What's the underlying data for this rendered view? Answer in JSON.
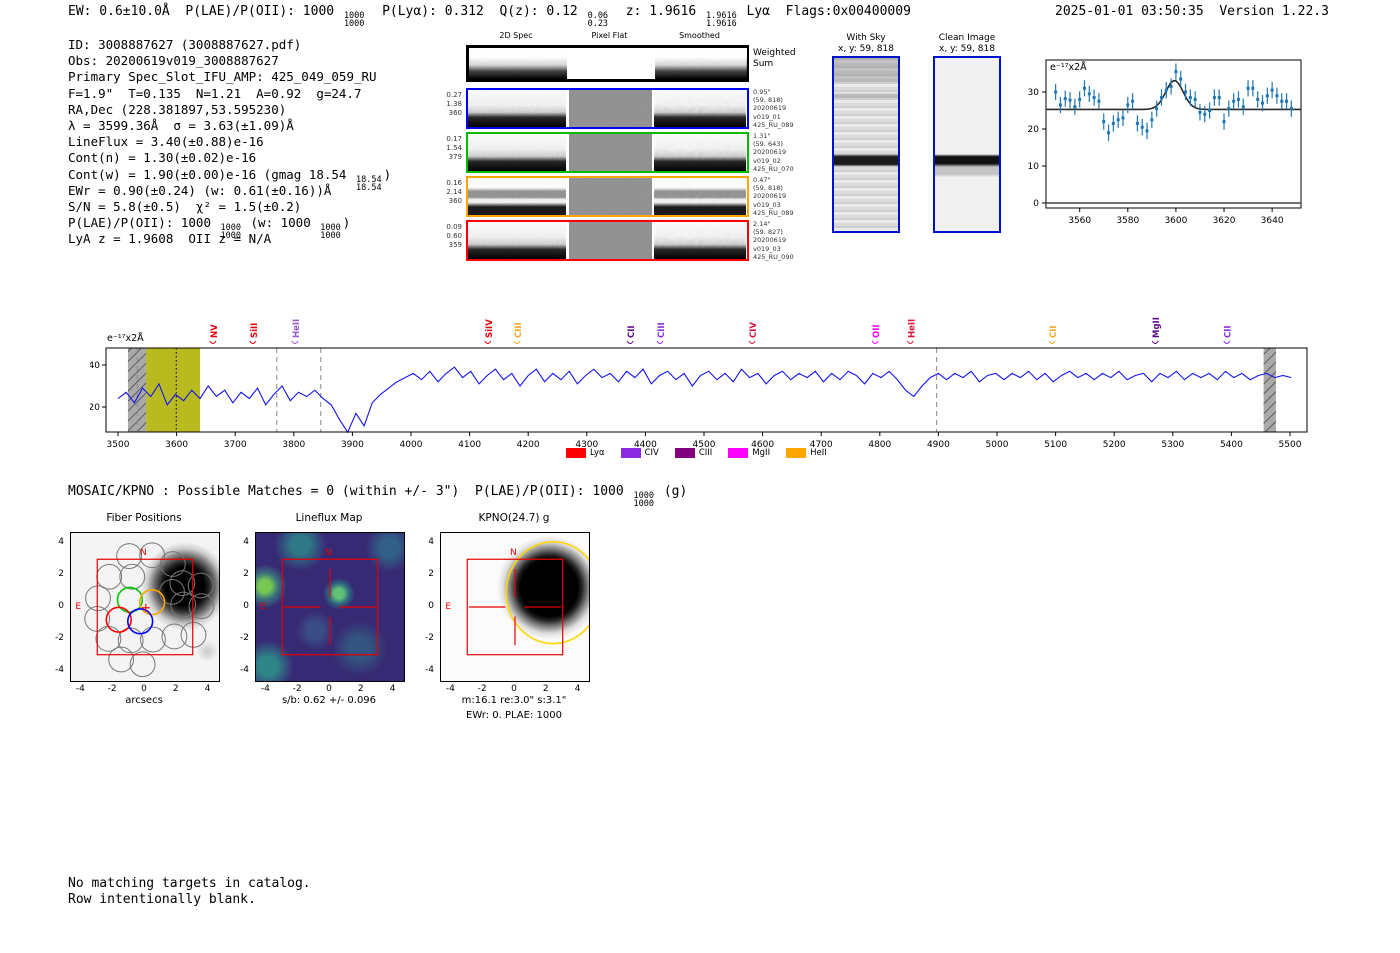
{
  "header": {
    "line": "EW: 0.6±10.0Å  P(LAE)/P(OII): 1000 [1000/1000]  P(Lyα): 0.312  Q(z): 0.12 [0.06/0.23]  z: 1.9616 [1.9616/1.9616] Lyα  Flags:0x00400009",
    "meta": "2025-01-01 03:50:35  Version 1.22.3"
  },
  "info": {
    "lines": [
      "ID: 3008887627 (3008887627.pdf)",
      "Obs: 20200619v019_3008887627",
      "Primary Spec_Slot_IFU_AMP: 425_049_059_RU",
      "F=1.9\"  T=0.135  N=1.21  A=0.92  g=24.7",
      "RA,Dec (228.381897,53.595230)",
      "λ = 3599.36Å  σ = 3.63(±1.09)Å",
      "LineFlux = 3.40(±0.88)e-16",
      "Cont(n) = 1.30(±0.02)e-16",
      "Cont(w) = 1.90(±0.00)e-16 (gmag 18.54 [18.54/18.54])",
      "EWr = 0.90(±0.24) (w: 0.61(±0.16))Å",
      "S/N = 5.8(±0.5)  χ² = 1.5(±0.2)",
      "P(LAE)/P(OII): 1000 [1000/1000] (w: 1000 [1000/1000])",
      "LyA z = 1.9608  OII z = N/A"
    ]
  },
  "spec2d": {
    "col_titles": [
      "2D Spec",
      "Pixel Flat",
      "Smoothed"
    ],
    "weighted_label": "Weighted Sum",
    "rows": [
      {
        "color": "#0000ff",
        "left": [
          "0.27",
          "1.38",
          "360"
        ],
        "right": [
          "0.95\"",
          "(59, 818)",
          "20200619",
          "v019_01",
          "425_RU_089"
        ]
      },
      {
        "color": "#00bb00",
        "left": [
          "0.17",
          "1.54",
          "379"
        ],
        "right": [
          "1.31\"",
          "(59, 643)",
          "20200619",
          "v019_02",
          "425_RU_070"
        ]
      },
      {
        "color": "#ffa500",
        "left": [
          "0.16",
          "2.14",
          "360"
        ],
        "right": [
          "0.47\"",
          "(59, 818)",
          "20200619",
          "v019_03",
          "425_RU_089"
        ]
      },
      {
        "color": "#ff0000",
        "left": [
          "0.09",
          "0.60",
          "359"
        ],
        "right": [
          "2.14\"",
          "(59, 827)",
          "20200619",
          "v019_03",
          "425_RU_090"
        ]
      }
    ]
  },
  "cutouts": {
    "with_sky": {
      "title": "With Sky",
      "coords": "x, y: 59, 818"
    },
    "clean": {
      "title": "Clean Image",
      "coords": "x, y: 59, 818"
    }
  },
  "mosaic_line": "MOSAIC/KPNO : Possible Matches = 0 (within +/- 3\")  P(LAE)/P(OII): 1000 [1000/1000] (g)",
  "notes": [
    "No matching targets in catalog.",
    "Row intentionally blank."
  ],
  "chart_data": [
    {
      "id": "line_fit",
      "type": "scatter",
      "units_label": "e⁻¹⁷x2Å",
      "x_start": 3550,
      "x_step": 2,
      "values": [
        30.0,
        26.5,
        28.2,
        27.8,
        26.0,
        28.0,
        31.0,
        29.5,
        28.5,
        27.5,
        22.0,
        19.0,
        21.5,
        22.5,
        23.0,
        26.5,
        27.5,
        21.5,
        20.5,
        19.5,
        22.5,
        25.5,
        28.5,
        30.5,
        31.5,
        35.5,
        33.5,
        30.0,
        28.5,
        28.0,
        24.5,
        24.0,
        25.0,
        28.5,
        28.5,
        22.0,
        25.5,
        27.5,
        28.0,
        26.0,
        31.0,
        31.0,
        28.0,
        27.0,
        29.0,
        30.5,
        29.0,
        27.5,
        27.5,
        25.5
      ],
      "yerr": 2.2,
      "fit": {
        "baseline": 25.3,
        "amplitude": 7.8,
        "center": 3599.4,
        "sigma": 3.63
      },
      "xticks": [
        3560,
        3580,
        3600,
        3620,
        3640
      ],
      "yticks": [
        0,
        10,
        20,
        30
      ],
      "xlim": [
        3546,
        3652
      ],
      "ylim": [
        -1.4,
        38.5
      ]
    },
    {
      "id": "full_spectrum",
      "type": "line",
      "units_label": "e⁻¹⁷x2Å",
      "x_start": 3500,
      "x_step": 14,
      "values": [
        24,
        27,
        22,
        29,
        25,
        31,
        21,
        26,
        23,
        28,
        24,
        30,
        25,
        28,
        22,
        27,
        24,
        29,
        21,
        26,
        30,
        23,
        27,
        25,
        28,
        24,
        21,
        14,
        8,
        17,
        11,
        22,
        26,
        29,
        32,
        34,
        36,
        33,
        37,
        32,
        36,
        39,
        34,
        37,
        31,
        35,
        38,
        33,
        36,
        30,
        35,
        38,
        32,
        36,
        33,
        37,
        31,
        35,
        38,
        34,
        36,
        32,
        37,
        34,
        38,
        31,
        35,
        37,
        33,
        36,
        30,
        35,
        37,
        33,
        36,
        32,
        38,
        34,
        36,
        31,
        35,
        37,
        33,
        36,
        34,
        37,
        32,
        36,
        33,
        37,
        35,
        31,
        36,
        34,
        37,
        33,
        28,
        25,
        30,
        34,
        36,
        33,
        36,
        34,
        37,
        32,
        35,
        36,
        33,
        36,
        34,
        37,
        33,
        36,
        32,
        35,
        37,
        34,
        36,
        33,
        36,
        34,
        37,
        33,
        35,
        36,
        32,
        36,
        34,
        37,
        33,
        36,
        34,
        36,
        33,
        37,
        34,
        36,
        33,
        35,
        36,
        34,
        35,
        34
      ],
      "xticks": [
        3500,
        3600,
        3700,
        3800,
        3900,
        4000,
        4100,
        4200,
        4300,
        4400,
        4500,
        4600,
        4700,
        4800,
        4900,
        5000,
        5100,
        5200,
        5300,
        5400,
        5500
      ],
      "yticks": [
        20,
        40
      ],
      "xlim": [
        3479,
        5529
      ],
      "ylim": [
        7,
        49
      ],
      "emission_band": [
        3548,
        3640
      ],
      "hatch_bands": [
        [
          3517,
          3548
        ],
        [
          5455,
          5476
        ]
      ],
      "dashed_lines": [
        3533,
        3771,
        3846,
        4897
      ],
      "dotted_line": 3599.4,
      "line_markers": [
        {
          "label": "NV",
          "wave": 3662,
          "color": "#e8000b"
        },
        {
          "label": "SiII",
          "wave": 3730,
          "color": "#e8000b"
        },
        {
          "label": "HeII",
          "wave": 3802,
          "color": "#9b59d0"
        },
        {
          "label": "SiIV",
          "wave": 4131,
          "color": "#e8000b"
        },
        {
          "label": "CIII",
          "wave": 4181,
          "color": "#f5a623"
        },
        {
          "label": "CII",
          "wave": 4374,
          "color": "#5c068c"
        },
        {
          "label": "CIII",
          "wave": 4425,
          "color": "#8a2be2"
        },
        {
          "label": "CIV",
          "wave": 4582,
          "color": "#dc143c"
        },
        {
          "label": "OII",
          "wave": 4792,
          "color": "#ff00ff"
        },
        {
          "label": "HeII",
          "wave": 4852,
          "color": "#dc143c"
        },
        {
          "label": "CII",
          "wave": 5094,
          "color": "#f5a623"
        },
        {
          "label": "MgII",
          "wave": 5270,
          "color": "#5c068c"
        },
        {
          "label": "CII",
          "wave": 5392,
          "color": "#8a2be2"
        }
      ],
      "legend": [
        {
          "label": "Lyα",
          "color": "#ff0000"
        },
        {
          "label": "CIV",
          "color": "#8a2be2"
        },
        {
          "label": "CIII",
          "color": "#800080"
        },
        {
          "label": "MgII",
          "color": "#ff00ff"
        },
        {
          "label": "HeII",
          "color": "#ffa500"
        }
      ]
    },
    {
      "id": "fiber_positions",
      "type": "scatter",
      "title": "Fiber Positions",
      "xlabel": "arcsecs",
      "xticks": [
        -4,
        -2,
        0,
        2,
        4
      ],
      "yticks": [
        4,
        2,
        0,
        -2,
        -4
      ],
      "compass_n": "N",
      "compass_e": "E",
      "box": [
        -3,
        3
      ],
      "fiber_radius": 0.78,
      "gray_fibers": [
        [
          -1.0,
          3.2
        ],
        [
          0.45,
          3.25
        ],
        [
          1.75,
          2.7
        ],
        [
          -2.25,
          1.9
        ],
        [
          -0.8,
          1.9
        ],
        [
          1.7,
          0.95
        ],
        [
          2.35,
          1.5
        ],
        [
          3.5,
          1.35
        ],
        [
          -2.95,
          0.55
        ],
        [
          2.4,
          0.15
        ],
        [
          3.55,
          0.05
        ],
        [
          -3.0,
          -0.75
        ],
        [
          -2.3,
          -2.0
        ],
        [
          -0.9,
          -2.1
        ],
        [
          0.5,
          -2.05
        ],
        [
          1.85,
          -1.85
        ],
        [
          3.05,
          -1.75
        ],
        [
          -1.5,
          -3.3
        ],
        [
          -0.15,
          -3.6
        ]
      ],
      "colored_fibers": [
        {
          "x": -0.95,
          "y": 0.45,
          "color": "#00c800"
        },
        {
          "x": 0.45,
          "y": 0.3,
          "color": "#ffa500"
        },
        {
          "x": -1.65,
          "y": -0.8,
          "color": "#ff0000"
        },
        {
          "x": -0.3,
          "y": -0.9,
          "color": "#0000ff"
        }
      ],
      "plus": [
        0.05,
        -0.05
      ]
    },
    {
      "id": "lineflux_map",
      "type": "heatmap",
      "title": "Lineflux Map",
      "xlabel": "s/b: 0.62 +/- 0.096",
      "xticks": [
        -4,
        -2,
        0,
        2,
        4
      ],
      "yticks": [
        4,
        2,
        0,
        -2,
        -4
      ],
      "compass_n": "N",
      "compass_e": "E",
      "box": [
        -3,
        3
      ],
      "crosshair": true
    },
    {
      "id": "kpno_g",
      "type": "image",
      "title": "KPNO(24.7) g",
      "xlabel": "m:16.1  re:3.0\"  s:3.1\"",
      "xlabel2": "EWr: 0. PLAE: 1000",
      "xticks": [
        -4,
        -2,
        0,
        2,
        4
      ],
      "yticks": [
        4,
        2,
        0,
        -2,
        -4
      ],
      "compass_n": "N",
      "compass_e": "E",
      "box": [
        -3,
        3
      ],
      "crosshair": true,
      "ellipse": {
        "x": 2.4,
        "y": 0.9,
        "rx": 2.95,
        "ry": 3.2,
        "color": "#ffd700"
      }
    }
  ]
}
